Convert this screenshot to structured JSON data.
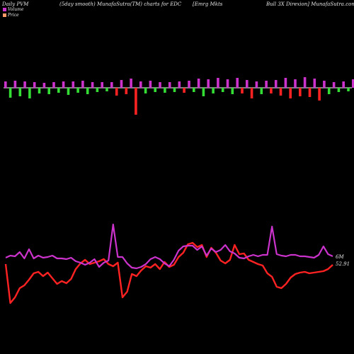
{
  "header": {
    "left": "Daily PVM",
    "center": "(5day smooth) MunafaSutra(TM) charts for EDC",
    "name": "[Emrg Mkts",
    "right": "Bull 3X  Direxion] MunafaSutra.com"
  },
  "legend": [
    {
      "label": "Volume",
      "color": "#cc33cc"
    },
    {
      "label": "Price",
      "color": "#ff9966"
    }
  ],
  "colors": {
    "volume_up": "#cc33cc",
    "volume_down": "#33dd33",
    "volume_spike": "#ff2222",
    "price": "#ff2222",
    "volume_line": "#cc33cc",
    "baseline": "#ffffff"
  },
  "chart_data": {
    "type": "line",
    "volume_bars": {
      "values": [
        9,
        -14,
        10,
        -12,
        9,
        -15,
        8,
        -8,
        7,
        -9,
        8,
        -7,
        9,
        -10,
        9,
        -7,
        10,
        -9,
        8,
        -6,
        8,
        -5,
        8,
        -11,
        11,
        -9,
        13,
        -38,
        9,
        -8,
        10,
        -6,
        8,
        -7,
        8,
        -6,
        9,
        -7,
        10,
        -6,
        13,
        -12,
        12,
        -8,
        14,
        -6,
        12,
        -9,
        14,
        -8,
        11,
        -15,
        9,
        -9,
        10,
        -8,
        11,
        -11,
        14,
        -15,
        12,
        -12,
        15,
        -13,
        13,
        -18,
        10,
        -9,
        8,
        -6,
        9,
        -5,
        12,
        -7,
        9,
        -10
      ],
      "colors": [
        "u",
        "d",
        "u",
        "d",
        "u",
        "d",
        "u",
        "d",
        "u",
        "d",
        "u",
        "d",
        "u",
        "d",
        "u",
        "d",
        "u",
        "d",
        "u",
        "d",
        "u",
        "d",
        "u",
        "s",
        "u",
        "s",
        "u",
        "s",
        "u",
        "d",
        "u",
        "d",
        "u",
        "d",
        "u",
        "d",
        "u",
        "s",
        "u",
        "d",
        "u",
        "d",
        "u",
        "d",
        "u",
        "d",
        "u",
        "d",
        "u",
        "s",
        "u",
        "s",
        "u",
        "d",
        "u",
        "s",
        "u",
        "s",
        "u",
        "s",
        "u",
        "s",
        "u",
        "s",
        "u",
        "s",
        "u",
        "d",
        "u",
        "d",
        "u",
        "d",
        "u",
        "d",
        "u",
        "d"
      ]
    },
    "series": [
      {
        "values": [
          373,
          428,
          420,
          407,
          403,
          395,
          386,
          384,
          390,
          385,
          393,
          401,
          397,
          400,
          394,
          380,
          372,
          367,
          373,
          371,
          369,
          366,
          373,
          376,
          371,
          420,
          412,
          387,
          390,
          382,
          376,
          378,
          373,
          380,
          370,
          377,
          374,
          363,
          357,
          345,
          343,
          349,
          346,
          363,
          350,
          357,
          368,
          372,
          367,
          346,
          359,
          358,
          367,
          370,
          373,
          375,
          386,
          391,
          405,
          407,
          401,
          392,
          387,
          385,
          384,
          386,
          385,
          384,
          383,
          380,
          374
        ]
      },
      {
        "values": [
          364,
          361,
          362,
          356,
          365,
          352,
          365,
          361,
          364,
          363,
          361,
          365,
          365,
          366,
          364,
          369,
          371,
          374,
          371,
          366,
          377,
          371,
          368,
          317,
          363,
          363,
          372,
          378,
          379,
          377,
          373,
          366,
          363,
          366,
          372,
          376,
          367,
          354,
          348,
          347,
          347,
          353,
          348,
          361,
          351,
          356,
          353,
          346,
          355,
          358,
          364,
          365,
          362,
          360,
          362,
          360,
          360,
          320,
          359,
          361,
          362,
          360,
          360,
          362,
          362,
          363,
          364,
          360,
          348,
          359,
          362
        ]
      }
    ],
    "annotations": [
      "6M",
      "52.91"
    ]
  }
}
